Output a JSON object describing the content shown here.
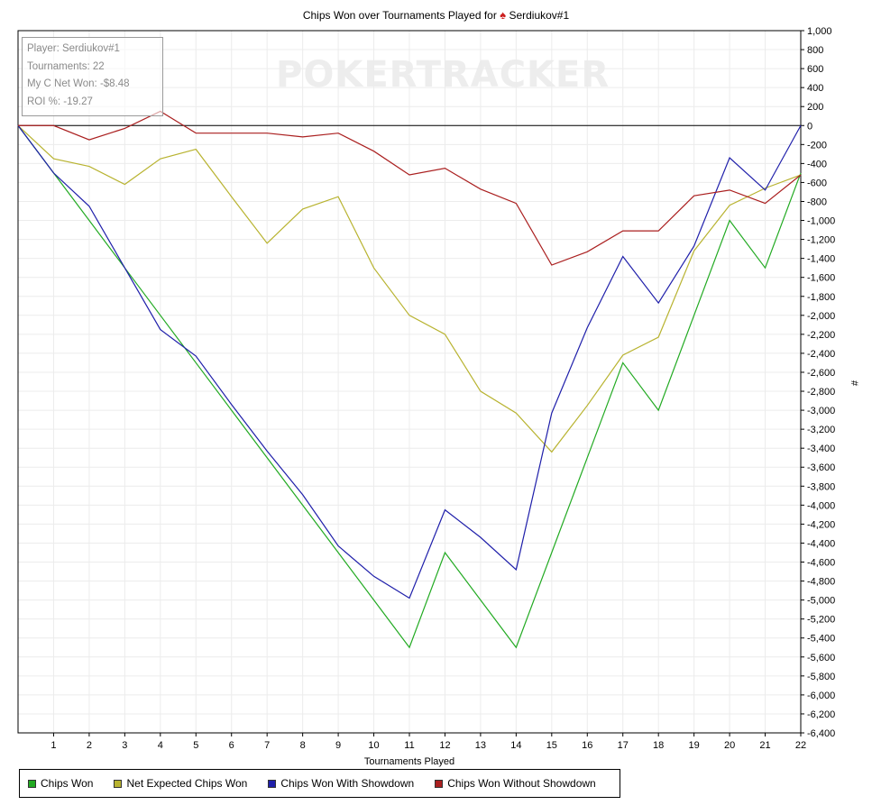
{
  "title": {
    "prefix": "Chips Won over Tournaments Played for",
    "player": "Serdiukov#1",
    "icon": "poker-spade-icon"
  },
  "watermark": "POKERTRACKER",
  "info_box": {
    "player": "Player: Serdiukov#1",
    "tournaments": "Tournaments: 22",
    "net_won": "My C Net Won: -$8.48",
    "roi": "ROI %: -19.27"
  },
  "chart_data": {
    "type": "line",
    "xlabel": "Tournaments Played",
    "ylabel": "#",
    "x": [
      0,
      1,
      2,
      3,
      4,
      5,
      6,
      7,
      8,
      9,
      10,
      11,
      12,
      13,
      14,
      15,
      16,
      17,
      18,
      19,
      20,
      21,
      22
    ],
    "x_tick_labels": [
      "1",
      "2",
      "3",
      "4",
      "5",
      "6",
      "7",
      "8",
      "9",
      "10",
      "11",
      "12",
      "13",
      "14",
      "15",
      "16",
      "17",
      "18",
      "19",
      "20",
      "21",
      "22"
    ],
    "ylim": [
      -6400,
      1000
    ],
    "y_tick_labels": [
      "1,000",
      "800",
      "600",
      "400",
      "200",
      "0",
      "-200",
      "-400",
      "-600",
      "-800",
      "-1,000",
      "-1,200",
      "-1,400",
      "-1,600",
      "-1,800",
      "-2,000",
      "-2,200",
      "-2,400",
      "-2,600",
      "-2,800",
      "-3,000",
      "-3,200",
      "-3,400",
      "-3,600",
      "-3,800",
      "-4,000",
      "-4,200",
      "-4,400",
      "-4,600",
      "-4,800",
      "-5,000",
      "-5,200",
      "-5,400",
      "-5,600",
      "-5,800",
      "-6,000",
      "-6,200",
      "-6,400"
    ],
    "grid": true,
    "zero_line": true,
    "legend_position": "bottom-left",
    "series": [
      {
        "name": "Chips Won",
        "color": "#22aa22",
        "values": [
          0,
          -500,
          -1000,
          -1500,
          -2000,
          -2500,
          -3000,
          -3500,
          -4000,
          -4500,
          -5000,
          -5500,
          -4500,
          -5000,
          -5500,
          -4500,
          -3500,
          -2500,
          -3000,
          -2000,
          -1000,
          -1500,
          -500
        ]
      },
      {
        "name": "Net Expected Chips Won",
        "color": "#b8b330",
        "values": [
          0,
          -350,
          -430,
          -620,
          -350,
          -250,
          -750,
          -1240,
          -880,
          -750,
          -1500,
          -2000,
          -2200,
          -2800,
          -3030,
          -3440,
          -2950,
          -2420,
          -2230,
          -1320,
          -840,
          -660,
          -520
        ]
      },
      {
        "name": "Chips Won With Showdown",
        "color": "#1f1faa",
        "values": [
          0,
          -500,
          -850,
          -1500,
          -2150,
          -2430,
          -2940,
          -3430,
          -3890,
          -4430,
          -4750,
          -4980,
          -4050,
          -4340,
          -4680,
          -3030,
          -2130,
          -1380,
          -1870,
          -1270,
          -340,
          -680,
          0
        ]
      },
      {
        "name": "Chips Won Without Showdown",
        "color": "#aa1f1f",
        "values": [
          0,
          0,
          -150,
          -30,
          150,
          -80,
          -80,
          -80,
          -120,
          -80,
          -270,
          -520,
          -450,
          -670,
          -820,
          -1470,
          -1330,
          -1110,
          -1110,
          -740,
          -680,
          -820,
          -520
        ]
      }
    ]
  }
}
